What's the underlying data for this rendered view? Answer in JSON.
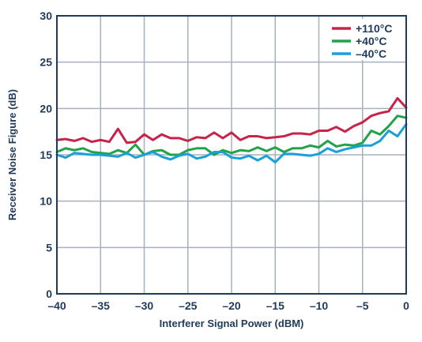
{
  "chart_data": {
    "type": "line",
    "xlabel": "Interferer Signal Power (dBM)",
    "ylabel": "Receiver Noise Figure (dB)",
    "xlim": [
      -40,
      0
    ],
    "ylim": [
      0,
      30
    ],
    "xticks": [
      -40,
      -35,
      -30,
      -25,
      -20,
      -15,
      -10,
      -5,
      0
    ],
    "yticks": [
      0,
      5,
      10,
      15,
      20,
      25,
      30
    ],
    "xtick_labels": [
      "–40",
      "–35",
      "–30",
      "–25",
      "–20",
      "–15",
      "–10",
      "–5",
      "0"
    ],
    "ytick_labels": [
      "0",
      "5",
      "10",
      "15",
      "20",
      "25",
      "30"
    ],
    "grid": true,
    "legend_position": "top-right",
    "x": [
      -40,
      -39,
      -38,
      -37,
      -36,
      -35,
      -34,
      -33,
      -32,
      -31,
      -30,
      -29,
      -28,
      -27,
      -26,
      -25,
      -24,
      -23,
      -22,
      -21,
      -20,
      -19,
      -18,
      -17,
      -16,
      -15,
      -14,
      -13,
      -12,
      -11,
      -10,
      -9,
      -8,
      -7,
      -6,
      -5,
      -4,
      -3,
      -2,
      -1,
      0
    ],
    "series": [
      {
        "name": "+110°C",
        "color": "#c8234a",
        "values": [
          16.6,
          16.7,
          16.5,
          16.8,
          16.4,
          16.6,
          16.4,
          17.8,
          16.3,
          16.4,
          17.2,
          16.6,
          17.2,
          16.8,
          16.8,
          16.5,
          16.9,
          16.8,
          17.4,
          16.8,
          17.4,
          16.6,
          17.0,
          17.0,
          16.8,
          16.9,
          17.0,
          17.3,
          17.3,
          17.2,
          17.6,
          17.6,
          18.0,
          17.5,
          18.1,
          18.5,
          19.2,
          19.5,
          19.7,
          21.1,
          20.1
        ]
      },
      {
        "name": "+40°C",
        "color": "#22a34a",
        "values": [
          15.3,
          15.7,
          15.5,
          15.7,
          15.3,
          15.2,
          15.1,
          15.5,
          15.2,
          16.1,
          15.0,
          15.4,
          15.5,
          15.0,
          15.0,
          15.5,
          15.7,
          15.7,
          15.0,
          15.5,
          15.2,
          15.5,
          15.4,
          15.8,
          15.4,
          15.8,
          15.3,
          15.7,
          15.7,
          16.0,
          15.8,
          16.5,
          15.9,
          16.1,
          16.0,
          16.3,
          17.6,
          17.2,
          18.1,
          19.2,
          19.0
        ]
      },
      {
        "name": "–40°C",
        "color": "#1aa0d8",
        "values": [
          15.0,
          14.7,
          15.2,
          15.1,
          15.0,
          15.0,
          14.9,
          14.8,
          15.2,
          14.7,
          15.0,
          15.3,
          14.8,
          14.5,
          14.9,
          15.1,
          14.6,
          14.8,
          15.3,
          15.3,
          14.7,
          14.6,
          14.9,
          14.4,
          14.9,
          14.2,
          15.1,
          15.1,
          15.0,
          14.9,
          15.1,
          15.7,
          15.3,
          15.6,
          15.8,
          16.0,
          16.0,
          16.5,
          17.6,
          17.0,
          18.3
        ]
      }
    ]
  }
}
